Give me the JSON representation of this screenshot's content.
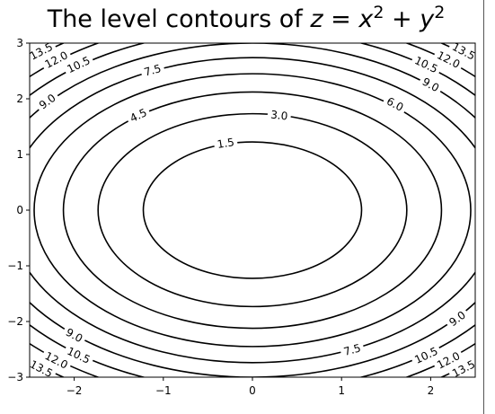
{
  "chart_data": {
    "type": "contour",
    "function": "z = x^2 + y^2",
    "title": "The level contours of z = x² + y²",
    "title_parts": [
      "The level contours of ",
      "z",
      " = ",
      "x",
      "2",
      " + ",
      "y",
      "2"
    ],
    "xlim": [
      -2.5,
      2.5
    ],
    "ylim": [
      -3,
      3
    ],
    "x_ticks": [
      -2,
      -1,
      0,
      1,
      2
    ],
    "y_ticks": [
      -3,
      -2,
      -1,
      0,
      1,
      2,
      3
    ],
    "x_tick_labels": [
      "−2",
      "−1",
      "0",
      "1",
      "2"
    ],
    "y_tick_labels": [
      "−3",
      "−2",
      "−1",
      "0",
      "1",
      "2",
      "3"
    ],
    "levels": [
      1.5,
      3.0,
      4.5,
      6.0,
      7.5,
      9.0,
      10.5,
      12.0,
      13.5
    ],
    "level_labels": [
      "1.5",
      "3.0",
      "4.5",
      "6.0",
      "7.5",
      "9.0",
      "10.5",
      "12.0",
      "13.5"
    ],
    "contour_labels": [
      {
        "level": 1.5,
        "text": "1.5",
        "x": -0.3,
        "y": 1.2
      },
      {
        "level": 3.0,
        "text": "3.0",
        "x": 0.3,
        "y": 1.7
      },
      {
        "level": 4.5,
        "text": "4.5",
        "x": -1.28,
        "y": 1.7
      },
      {
        "level": 6.0,
        "text": "6.0",
        "x": 1.6,
        "y": 1.9
      },
      {
        "level": 7.5,
        "text": "7.5",
        "x": -1.12,
        "y": 2.51
      },
      {
        "level": 7.5,
        "text": "7.5",
        "x": 1.12,
        "y": -2.51
      },
      {
        "level": 9.0,
        "text": "9.0",
        "x": -2.3,
        "y": 1.95
      },
      {
        "level": 9.0,
        "text": "9.0",
        "x": 2.0,
        "y": 2.25
      },
      {
        "level": 9.0,
        "text": "9.0",
        "x": -2.0,
        "y": -2.25
      },
      {
        "level": 9.0,
        "text": "9.0",
        "x": 2.3,
        "y": -1.95
      },
      {
        "level": 10.5,
        "text": "10.5",
        "x": -1.95,
        "y": 2.61
      },
      {
        "level": 10.5,
        "text": "10.5",
        "x": 1.95,
        "y": 2.61
      },
      {
        "level": 10.5,
        "text": "10.5",
        "x": -1.95,
        "y": -2.61
      },
      {
        "level": 10.5,
        "text": "10.5",
        "x": 1.95,
        "y": -2.61
      },
      {
        "level": 12.0,
        "text": "12.0",
        "x": -2.2,
        "y": 2.7
      },
      {
        "level": 12.0,
        "text": "12.0",
        "x": 2.2,
        "y": 2.7
      },
      {
        "level": 12.0,
        "text": "12.0",
        "x": -2.2,
        "y": -2.7
      },
      {
        "level": 12.0,
        "text": "12.0",
        "x": 2.2,
        "y": -2.7
      },
      {
        "level": 13.5,
        "text": "13.5",
        "x": -2.37,
        "y": 2.85
      },
      {
        "level": 13.5,
        "text": "13.5",
        "x": 2.37,
        "y": 2.85
      },
      {
        "level": 13.5,
        "text": "13.5",
        "x": -2.37,
        "y": -2.85
      },
      {
        "level": 13.5,
        "text": "13.5",
        "x": 2.37,
        "y": -2.85
      }
    ],
    "xlabel": "",
    "ylabel": "",
    "grid": false,
    "line_color": "#000000"
  }
}
